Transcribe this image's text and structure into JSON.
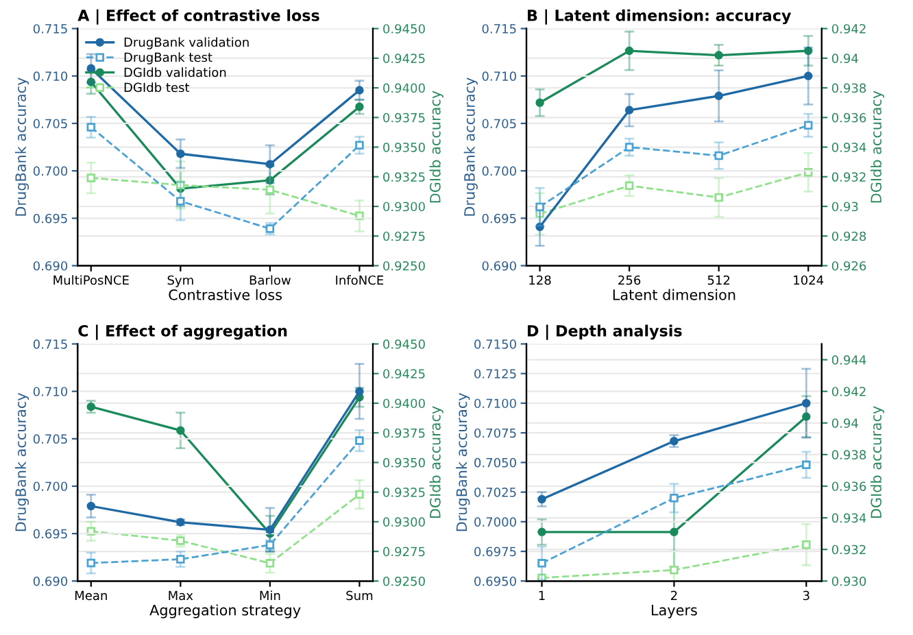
{
  "chart_data": [
    {
      "type": "line",
      "title": "A | Effect of contrastive loss",
      "xlabel": "Contrastive loss",
      "ylabel": "DrugBank accuracy",
      "y2label": "DGIdb accuracy",
      "categories": [
        "MultiPosNCE",
        "Sym",
        "Barlow",
        "InfoNCE"
      ],
      "ylim": [
        0.69,
        0.715
      ],
      "yticks": [
        {
          "value": 0.69,
          "label": "0.690"
        },
        {
          "value": 0.695,
          "label": "0.695"
        },
        {
          "value": 0.7,
          "label": "0.700"
        },
        {
          "value": 0.705,
          "label": "0.705"
        },
        {
          "value": 0.71,
          "label": "0.710"
        },
        {
          "value": 0.715,
          "label": "0.715"
        }
      ],
      "y2lim": [
        0.925,
        0.945
      ],
      "y2ticks": [
        {
          "value": 0.925,
          "label": "0.9250"
        },
        {
          "value": 0.9275,
          "label": "0.9275"
        },
        {
          "value": 0.93,
          "label": "0.9300"
        },
        {
          "value": 0.9325,
          "label": "0.9325"
        },
        {
          "value": 0.935,
          "label": "0.9350"
        },
        {
          "value": 0.9375,
          "label": "0.9375"
        },
        {
          "value": 0.94,
          "label": "0.9400"
        },
        {
          "value": 0.9425,
          "label": "0.9425"
        },
        {
          "value": 0.945,
          "label": "0.9450"
        }
      ],
      "grid": "y",
      "legend": "top left",
      "series": [
        {
          "name": "DrugBank validation",
          "color": "#1f6aa5",
          "marker": "circle",
          "line_style": "solid",
          "values": [
            0.7108,
            0.7018,
            0.7007,
            0.7085
          ],
          "errors": [
            0.0015,
            0.0015,
            0.002,
            0.001
          ]
        },
        {
          "name": "DrugBank test",
          "color": "#4ba3d3",
          "marker": "square",
          "line_style": "dashed",
          "values": [
            0.7046,
            0.6968,
            0.6939,
            0.7027
          ],
          "errors": [
            0.0011,
            0.002,
            0.0006,
            0.0009
          ]
        },
        {
          "name": "DGIdb validation",
          "color": "#1a8a5a",
          "marker": "circle",
          "line_style": "solid",
          "axis": "y2",
          "values": [
            0.9405,
            0.9315,
            0.9322,
            0.9384
          ],
          "errors": [
            0.001,
            0.0015,
            0.0012,
            0.0006
          ]
        },
        {
          "name": "DGIdb test",
          "color": "#8ee08a",
          "marker": "square",
          "line_style": "dashed",
          "axis": "y2",
          "values": [
            0.9324,
            0.9318,
            0.9314,
            0.9292
          ],
          "errors": [
            0.0013,
            0.002,
            0.002,
            0.0013
          ]
        }
      ]
    },
    {
      "type": "line",
      "title": "B | Latent dimension: accuracy",
      "xlabel": "Latent dimension",
      "ylabel": "DrugBank accuracy",
      "y2label": "DGIdb accuracy",
      "categories": [
        "128",
        "256",
        "512",
        "1024"
      ],
      "ylim": [
        0.69,
        0.715
      ],
      "yticks": [
        {
          "value": 0.69,
          "label": "0.690"
        },
        {
          "value": 0.695,
          "label": "0.695"
        },
        {
          "value": 0.7,
          "label": "0.700"
        },
        {
          "value": 0.705,
          "label": "0.705"
        },
        {
          "value": 0.71,
          "label": "0.710"
        },
        {
          "value": 0.715,
          "label": "0.715"
        }
      ],
      "y2lim": [
        0.926,
        0.942
      ],
      "y2ticks": [
        0.926,
        0.928,
        0.93,
        0.932,
        0.934,
        0.936,
        0.938,
        0.94,
        0.942
      ],
      "grid": "y",
      "series": [
        {
          "color": "#1f6aa5",
          "marker": "circle",
          "line_style": "solid",
          "values": [
            0.6941,
            0.7064,
            0.7079,
            0.71
          ],
          "errors": [
            0.002,
            0.0017,
            0.0027,
            0.003
          ]
        },
        {
          "color": "#4ba3d3",
          "marker": "square",
          "line_style": "dashed",
          "values": [
            0.6962,
            0.7025,
            0.7016,
            0.7048
          ],
          "errors": [
            0.002,
            0.0009,
            0.0014,
            0.0012
          ]
        },
        {
          "color": "#1a8a5a",
          "marker": "circle",
          "line_style": "solid",
          "axis": "y2",
          "values": [
            0.937,
            0.9405,
            0.9402,
            0.9405
          ],
          "errors": [
            0.0009,
            0.0013,
            0.0007,
            0.001
          ]
        },
        {
          "color": "#8ee08a",
          "marker": "square",
          "line_style": "dashed",
          "axis": "y2",
          "values": [
            0.9295,
            0.9314,
            0.9306,
            0.9323
          ],
          "errors": [
            0.0014,
            0.0007,
            0.0013,
            0.0013
          ]
        }
      ]
    },
    {
      "type": "line",
      "title": "C | Effect of aggregation",
      "xlabel": "Aggregation strategy",
      "ylabel": "DrugBank accuracy",
      "y2label": "DGIdb accuracy",
      "categories": [
        "Mean",
        "Max",
        "Min",
        "Sum"
      ],
      "ylim": [
        0.69,
        0.715
      ],
      "yticks": [
        {
          "value": 0.69,
          "label": "0.690"
        },
        {
          "value": 0.695,
          "label": "0.695"
        },
        {
          "value": 0.7,
          "label": "0.700"
        },
        {
          "value": 0.705,
          "label": "0.705"
        },
        {
          "value": 0.71,
          "label": "0.710"
        },
        {
          "value": 0.715,
          "label": "0.715"
        }
      ],
      "y2lim": [
        0.925,
        0.945
      ],
      "y2ticks": [
        {
          "value": 0.925,
          "label": "0.9250"
        },
        {
          "value": 0.9275,
          "label": "0.9275"
        },
        {
          "value": 0.93,
          "label": "0.9300"
        },
        {
          "value": 0.9325,
          "label": "0.9325"
        },
        {
          "value": 0.935,
          "label": "0.9350"
        },
        {
          "value": 0.9375,
          "label": "0.9375"
        },
        {
          "value": 0.94,
          "label": "0.9400"
        },
        {
          "value": 0.9425,
          "label": "0.9425"
        },
        {
          "value": 0.945,
          "label": "0.9450"
        }
      ],
      "grid": "y",
      "series": [
        {
          "color": "#1f6aa5",
          "marker": "circle",
          "line_style": "solid",
          "values": [
            0.6979,
            0.6962,
            0.6954,
            0.71
          ],
          "errors": [
            0.0012,
            0.0003,
            0.0023,
            0.0029
          ]
        },
        {
          "color": "#4ba3d3",
          "marker": "square",
          "line_style": "dashed",
          "values": [
            0.6919,
            0.6923,
            0.6938,
            0.7048
          ],
          "errors": [
            0.0011,
            0.0008,
            0.0005,
            0.0011
          ]
        },
        {
          "color": "#1a8a5a",
          "marker": "circle",
          "line_style": "solid",
          "axis": "y2",
          "values": [
            0.9397,
            0.9377,
            0.929,
            0.9405
          ],
          "errors": [
            0.0005,
            0.0015,
            0.0015,
            0.0008
          ]
        },
        {
          "color": "#8ee08a",
          "marker": "square",
          "line_style": "dashed",
          "axis": "y2",
          "values": [
            0.9292,
            0.9284,
            0.9265,
            0.9323
          ],
          "errors": [
            0.0008,
            0.0005,
            0.0008,
            0.0012
          ]
        }
      ]
    },
    {
      "type": "line",
      "title": "D | Depth analysis",
      "xlabel": "Layers",
      "ylabel": "DrugBank accuracy",
      "y2label": "DGIdb accuracy",
      "categories": [
        "1",
        "2",
        "3"
      ],
      "ylim": [
        0.695,
        0.715
      ],
      "yticks": [
        {
          "value": 0.695,
          "label": "0.6950"
        },
        {
          "value": 0.6975,
          "label": "0.6975"
        },
        {
          "value": 0.7,
          "label": "0.7000"
        },
        {
          "value": 0.7025,
          "label": "0.7025"
        },
        {
          "value": 0.705,
          "label": "0.7050"
        },
        {
          "value": 0.7075,
          "label": "0.7075"
        },
        {
          "value": 0.71,
          "label": "0.7100"
        },
        {
          "value": 0.7125,
          "label": "0.7125"
        },
        {
          "value": 0.715,
          "label": "0.7150"
        }
      ],
      "y2lim": [
        0.93,
        0.945
      ],
      "y2ticks": [
        {
          "value": 0.93,
          "label": "0.930"
        },
        0.932,
        0.934,
        0.936,
        0.938,
        0.94,
        0.942,
        0.944
      ],
      "grid": "y",
      "series": [
        {
          "color": "#1f6aa5",
          "marker": "circle",
          "line_style": "solid",
          "values": [
            0.7019,
            0.7068,
            0.71
          ],
          "errors": [
            0.0006,
            0.0005,
            0.0029
          ]
        },
        {
          "color": "#4ba3d3",
          "marker": "square",
          "line_style": "dashed",
          "values": [
            0.6965,
            0.702,
            0.7048
          ],
          "errors": [
            0.0014,
            0.0012,
            0.0011
          ]
        },
        {
          "color": "#1a8a5a",
          "marker": "circle",
          "line_style": "solid",
          "axis": "y2",
          "values": [
            0.9331,
            0.9331,
            0.9404
          ],
          "errors": [
            0.0008,
            0.0022,
            0.0013
          ]
        },
        {
          "color": "#8ee08a",
          "marker": "square",
          "line_style": "dashed",
          "axis": "y2",
          "values": [
            0.9302,
            0.9307,
            0.9323
          ],
          "errors": [
            null,
            0.0012,
            0.0013
          ]
        }
      ]
    }
  ]
}
